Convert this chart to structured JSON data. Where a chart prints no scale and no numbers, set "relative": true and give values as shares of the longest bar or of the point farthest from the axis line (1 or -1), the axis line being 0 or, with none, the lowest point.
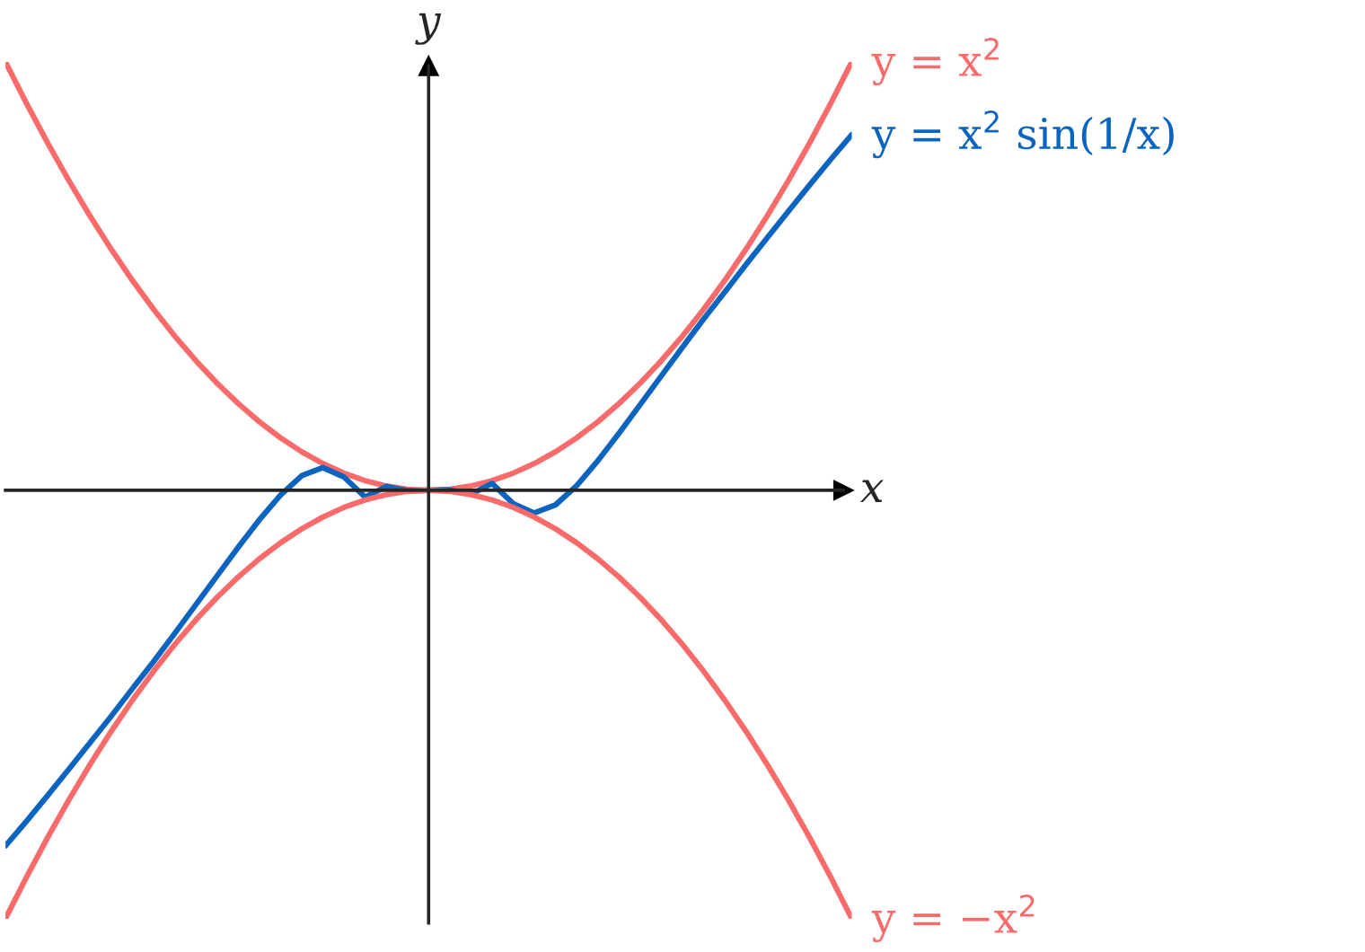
{
  "chart_data": {
    "type": "line",
    "relative": true,
    "xlabel": "x",
    "ylabel": "y",
    "line_style": "solid",
    "marker": "none",
    "categories": [
      null,
      null,
      null,
      null,
      null,
      null,
      null,
      null,
      null,
      null,
      null,
      null,
      null,
      null,
      null,
      null,
      null,
      null,
      null,
      null,
      null,
      null,
      null,
      null,
      null,
      null,
      null,
      null,
      null,
      null,
      null,
      null,
      null,
      null,
      null,
      null,
      null,
      null,
      null,
      null,
      null
    ],
    "series": [
      {
        "name": "y = x$^{2}$",
        "color": "#f96b6b",
        "values": [
          1,
          0.9025,
          0.81,
          0.7225,
          0.64,
          0.5625,
          0.49,
          0.4225,
          0.36,
          0.3025,
          0.25,
          0.2025,
          0.16,
          0.1225,
          0.09,
          0.0625,
          0.04,
          0.0225,
          0.01,
          0.0025,
          0,
          0.0025,
          0.01,
          0.0225,
          0.04,
          0.0625,
          0.09,
          0.1225,
          0.16,
          0.2025,
          0.25,
          0.3025,
          0.36,
          0.4225,
          0.49,
          0.5625,
          0.64,
          0.7225,
          0.81,
          0.9025,
          1
        ]
      },
      {
        "name": "y = x$^{2}$ sin(1/x)",
        "color": "#0b64c0",
        "values": [
          -0.83,
          -0.772,
          -0.712,
          -0.651,
          -0.589,
          -0.527,
          -0.463,
          -0.4,
          -0.334,
          -0.267,
          -0.2,
          -0.133,
          -0.069,
          -0.011,
          0.034,
          0.053,
          0.031,
          -0.016,
          0.009,
          -0.001,
          0,
          0.001,
          -0.009,
          0.016,
          -0.031,
          -0.053,
          -0.034,
          0.011,
          0.069,
          0.133,
          0.2,
          0.267,
          0.334,
          0.4,
          0.463,
          0.527,
          0.589,
          0.651,
          0.712,
          0.772,
          0.83
        ]
      },
      {
        "name": "y = −x$^{2}$",
        "color": "#f96b6b",
        "values": [
          -1,
          -0.9025,
          -0.81,
          -0.7225,
          -0.64,
          -0.5625,
          -0.49,
          -0.4225,
          -0.36,
          -0.3025,
          -0.25,
          -0.2025,
          -0.16,
          -0.1225,
          -0.09,
          -0.0625,
          -0.04,
          -0.0225,
          -0.01,
          -0.0025,
          0,
          -0.0025,
          -0.01,
          -0.0225,
          -0.04,
          -0.0625,
          -0.09,
          -0.1225,
          -0.16,
          -0.2025,
          -0.25,
          -0.3025,
          -0.36,
          -0.4225,
          -0.49,
          -0.5625,
          -0.64,
          -0.7225,
          -0.81,
          -0.9025,
          -1
        ]
      }
    ]
  }
}
